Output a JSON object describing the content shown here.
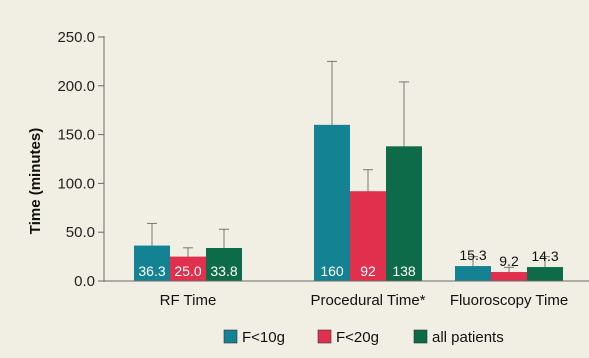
{
  "colors": {
    "background": "#f1efe3",
    "axis": "#6a6a6a",
    "inside_label": "#ffffff",
    "outside_label": "#111111"
  },
  "chart_data": {
    "type": "bar",
    "title": "",
    "xlabel": "",
    "ylabel": "Time (minutes)",
    "ylim": [
      0,
      250
    ],
    "yticks": [
      "0.0",
      "50.0",
      "100.0",
      "150.0",
      "200.0",
      "250.0"
    ],
    "grid": false,
    "legend_position": "bottom",
    "categories": [
      "RF Time",
      "Procedural Time*",
      "Fluoroscopy Time"
    ],
    "series": [
      {
        "name": "F<10g",
        "color": "#138292",
        "values": [
          36.3,
          160,
          15.3
        ],
        "labels": [
          "36.3",
          "160",
          "15.3"
        ],
        "error_upper": [
          59,
          225,
          25
        ]
      },
      {
        "name": "F<20g",
        "color": "#e0304e",
        "values": [
          25.0,
          92,
          9.2
        ],
        "labels": [
          "25.0",
          "92",
          "9.2"
        ],
        "error_upper": [
          34,
          114,
          14
        ]
      },
      {
        "name": "all patients",
        "color": "#0e6b4a",
        "values": [
          33.8,
          138,
          14.3
        ],
        "labels": [
          "33.8",
          "138",
          "14.3"
        ],
        "error_upper": [
          53,
          204,
          25
        ]
      }
    ]
  }
}
